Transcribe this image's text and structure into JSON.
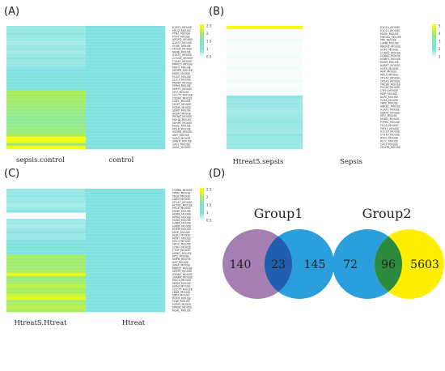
{
  "labels": {
    "a": "(A)",
    "b": "(B)",
    "c": "(C)",
    "d": "(D)"
  },
  "chart_data": [
    {
      "type": "heatmap",
      "panel": "(A)",
      "samples": [
        "sepsis.control",
        "control"
      ],
      "colorbar_ticks": [
        "2.5",
        "2",
        "1.5",
        "1",
        "0.5"
      ],
      "colorbar_range": [
        0.5,
        2.5
      ],
      "rows": [
        "A1AT1_MOUSE",
        "PROZ_MOUSE",
        "FTN1_MOUSE",
        "PTHY_MOUSE",
        "ARGH2_MOUSE",
        "A1AT3_MOUSE",
        "SODE_MOUSE",
        "FETUB_MOUSE",
        "NEHP_MOUSE",
        "A1AT2_MOUSE",
        "CO1GE_MOUSE",
        "C1ALE_MOUSE",
        "MMICO_MOUSE",
        "MUFS_MOUSE",
        "SEHPH_MOUSE",
        "MURI_MOUSE",
        "PCATI_MOUSE",
        "CLIC3_MOUSE",
        "PAHBT_MOUSE",
        "PERM_MOUSE",
        "SERPC_MOUSE",
        "MT2_MOUSE",
        "CD177_MOUSE",
        "SYDAE_MOUSE",
        "LIVEL_MOUSE",
        "LYVET_MOUSE",
        "PGRPI_MOUSE",
        "SPAIP_MOUSE",
        "AGOH_MOUSE",
        "PRTNS_MOUSE",
        "MUHA_MOUSE",
        "SEHPE_MOUSE",
        "NGAL_MOUSE",
        "MYLA_MOUSE",
        "SSHPB_MOUSE",
        "AMT_MOUSE",
        "SAA3_MOUSE",
        "SPALR_MOUSE",
        "CAY3_MOUSE",
        "SAA1_MOUSE"
      ],
      "values": [
        [
          0.9,
          1.0
        ],
        [
          0.9,
          1.0
        ],
        [
          0.95,
          1.0
        ],
        [
          0.9,
          1.0
        ],
        [
          0.9,
          1.0
        ],
        [
          0.85,
          1.0
        ],
        [
          0.9,
          1.0
        ],
        [
          0.9,
          1.0
        ],
        [
          0.85,
          1.0
        ],
        [
          0.9,
          1.0
        ],
        [
          0.95,
          1.0
        ],
        [
          0.9,
          1.0
        ],
        [
          0.9,
          1.0
        ],
        [
          0.95,
          1.0
        ],
        [
          1.0,
          1.0
        ],
        [
          1.0,
          1.0
        ],
        [
          1.0,
          1.0
        ],
        [
          1.0,
          1.0
        ],
        [
          1.05,
          1.0
        ],
        [
          1.05,
          1.0
        ],
        [
          1.05,
          1.0
        ],
        [
          2.0,
          1.0
        ],
        [
          2.0,
          1.0
        ],
        [
          1.95,
          1.0
        ],
        [
          1.9,
          1.0
        ],
        [
          1.9,
          1.0
        ],
        [
          1.85,
          1.0
        ],
        [
          1.8,
          1.0
        ],
        [
          1.8,
          1.0
        ],
        [
          1.75,
          1.0
        ],
        [
          1.7,
          1.0
        ],
        [
          1.75,
          1.0
        ],
        [
          1.8,
          1.0
        ],
        [
          1.8,
          1.0
        ],
        [
          1.85,
          1.0
        ],
        [
          2.0,
          1.0
        ],
        [
          2.5,
          1.0
        ],
        [
          2.4,
          1.0
        ],
        [
          1.9,
          1.0
        ],
        [
          2.5,
          1.0
        ]
      ]
    },
    {
      "type": "heatmap",
      "panel": "(B)",
      "samples": [
        "Htreat5.sepsis",
        "Sepsis"
      ],
      "colorbar_ticks": [
        "5",
        "4",
        "3",
        "2",
        "1"
      ],
      "colorbar_range": [
        1,
        5
      ],
      "rows": [
        "K1C14_MOUSE",
        "K1C17_MOUSE",
        "MLRV_MOUSE",
        "HMOX2_MOUSE",
        "TPA_MOUSE",
        "LUMR_MOUSE",
        "ARGH2_MOUSE",
        "SOP2_MOUSE",
        "CO6A1_MOUSE",
        "CO6A2_MOUSE",
        "HOBP1_MOUSE",
        "DUS3_MOUSE",
        "AARFT_MOUSE",
        "EGFR_MOUSE",
        "AHP_MOUSE",
        "MYL3_MOUSE",
        "CP1A2_MOUSE",
        "CP1A5_MOUSE",
        "TM160_MOUSE",
        "PCCAT_MOUSE",
        "CYFH_MOUSE",
        "MGP_MOUSE",
        "ALPE_MOUSE",
        "PLGA_MOUSE",
        "TAPE_MOUSE",
        "SAREC_MOUSE",
        "A1AT3_MOUSE",
        "SERPE_MOUSE",
        "MT2_MOUSE",
        "MCBD_MOUSE",
        "PTPRC_MOUSE",
        "FCCA_MOUSE",
        "THIY1_MOUSE",
        "K1C18_MOUSE",
        "CY37E_MOUSE",
        "RYCC_MOUSE",
        "PLCC_MOUSE",
        "CAT3_MOUSE",
        "CD47A_MOUSE"
      ],
      "values": [
        [
          4.9,
          1.0
        ],
        [
          1.05,
          1.0
        ],
        [
          1.05,
          1.0
        ],
        [
          1.05,
          1.0
        ],
        [
          1.1,
          1.0
        ],
        [
          1.05,
          1.0
        ],
        [
          1.05,
          1.0
        ],
        [
          1.05,
          1.0
        ],
        [
          1.05,
          1.0
        ],
        [
          1.1,
          1.0
        ],
        [
          1.05,
          1.0
        ],
        [
          1.05,
          1.0
        ],
        [
          1.05,
          1.0
        ],
        [
          1.1,
          1.0
        ],
        [
          1.05,
          1.0
        ],
        [
          1.05,
          1.0
        ],
        [
          1.05,
          1.0
        ],
        [
          1.1,
          1.0
        ],
        [
          1.05,
          1.0
        ],
        [
          1.05,
          1.0
        ],
        [
          1.1,
          1.0
        ],
        [
          0.6,
          1.0
        ],
        [
          1.9,
          1.0
        ],
        [
          1.8,
          1.0
        ],
        [
          1.8,
          1.0
        ],
        [
          1.8,
          1.0
        ],
        [
          1.75,
          1.0
        ],
        [
          1.75,
          1.0
        ],
        [
          1.8,
          1.0
        ],
        [
          1.8,
          1.0
        ],
        [
          1.85,
          1.0
        ],
        [
          1.8,
          1.0
        ],
        [
          1.8,
          1.0
        ],
        [
          1.75,
          1.0
        ],
        [
          1.9,
          1.0
        ],
        [
          1.8,
          1.0
        ],
        [
          1.8,
          1.0
        ],
        [
          1.8,
          1.0
        ],
        [
          1.8,
          1.0
        ]
      ]
    },
    {
      "type": "heatmap",
      "panel": "(C)",
      "samples": [
        "HtreatS.Htreat",
        "Htreat"
      ],
      "colorbar_ticks": [
        "2.5",
        "2",
        "1.5",
        "1",
        "0.5"
      ],
      "colorbar_range": [
        0.5,
        2.5
      ],
      "rows": [
        "HSPB6_MOUSE",
        "TPM2_MOUSE",
        "TAGE_MOUSE",
        "LDB3_MOUSE",
        "CP1A7_MOUSE",
        "ACTN2_MOUSE",
        "HECP_MOUSE",
        "MMIG_MOUSE",
        "ADDA_MOUSE",
        "MYH6_MOUSE",
        "MLRS_MOUSE",
        "HADA_MOUSE",
        "HADB_MOUSE",
        "KCRM_MOUSE",
        "MIOP_MOUSE",
        "ALBU_MOUSE",
        "MYH7_MOUSE",
        "MYL3_MOUSE",
        "TRO1_MOUSE",
        "CORO_MOUSE",
        "CTGF_MOUSE",
        "HEMO_MOUSE",
        "MT2_MOUSE",
        "SMPA_MOUSE",
        "AAT_MOUSE",
        "SAA1_MOUSE",
        "PARD2_MOUSE",
        "SERPE_MOUSE",
        "SYDAE_MOUSE",
        "CRAMP_MOUSE",
        "MUC5_MOUSE",
        "PERM_MOUSE",
        "SAA3_MOUSE",
        "CD177_MOUSE",
        "LEBR_MOUSE",
        "ISBD_MOUSE",
        "PCATI_MOUSE",
        "FLNE_MOUSE",
        "PGRPI_MOUSE",
        "SPA2B_MOUSE",
        "NGAL_MOUSE"
      ],
      "values": [
        [
          0.9,
          1.0
        ],
        [
          0.9,
          1.0
        ],
        [
          0.95,
          1.0
        ],
        [
          0.9,
          1.0
        ],
        [
          0.9,
          1.0
        ],
        [
          0.85,
          1.0
        ],
        [
          0.9,
          1.0
        ],
        [
          0.95,
          1.0
        ],
        [
          0.5,
          1.0
        ],
        [
          0.5,
          1.0
        ],
        [
          0.9,
          1.0
        ],
        [
          0.9,
          1.0
        ],
        [
          0.85,
          1.0
        ],
        [
          0.9,
          1.0
        ],
        [
          0.95,
          1.0
        ],
        [
          0.9,
          1.0
        ],
        [
          0.9,
          1.0
        ],
        [
          1.0,
          1.0
        ],
        [
          1.0,
          1.0
        ],
        [
          1.2,
          1.0
        ],
        [
          1.0,
          1.0
        ],
        [
          1.1,
          1.0
        ],
        [
          2.0,
          1.0
        ],
        [
          1.9,
          1.0
        ],
        [
          1.9,
          1.0
        ],
        [
          1.9,
          1.0
        ],
        [
          1.85,
          1.0
        ],
        [
          2.0,
          1.0
        ],
        [
          2.4,
          1.0
        ],
        [
          1.9,
          1.0
        ],
        [
          1.85,
          1.0
        ],
        [
          2.0,
          1.0
        ],
        [
          2.1,
          1.0
        ],
        [
          1.95,
          1.0
        ],
        [
          2.0,
          1.0
        ],
        [
          2.2,
          1.0
        ],
        [
          2.3,
          1.0
        ],
        [
          1.9,
          1.0
        ],
        [
          2.0,
          1.0
        ],
        [
          2.1,
          1.0
        ],
        [
          2.0,
          1.0
        ]
      ]
    },
    {
      "type": "venn",
      "panel": "(D)",
      "groups": [
        {
          "title": "Group1",
          "left_only": "140",
          "overlap": "23",
          "right_only": "145",
          "left_color": "#a57fb4",
          "right_color": "#2b9fdc",
          "overlap_color": "#1f5fae"
        },
        {
          "title": "Group2",
          "left_only": "72",
          "overlap": "96",
          "right_only": "5603",
          "left_color": "#2b9fdc",
          "right_color": "#ffee00",
          "overlap_color": "#2c8a3d"
        }
      ]
    }
  ]
}
